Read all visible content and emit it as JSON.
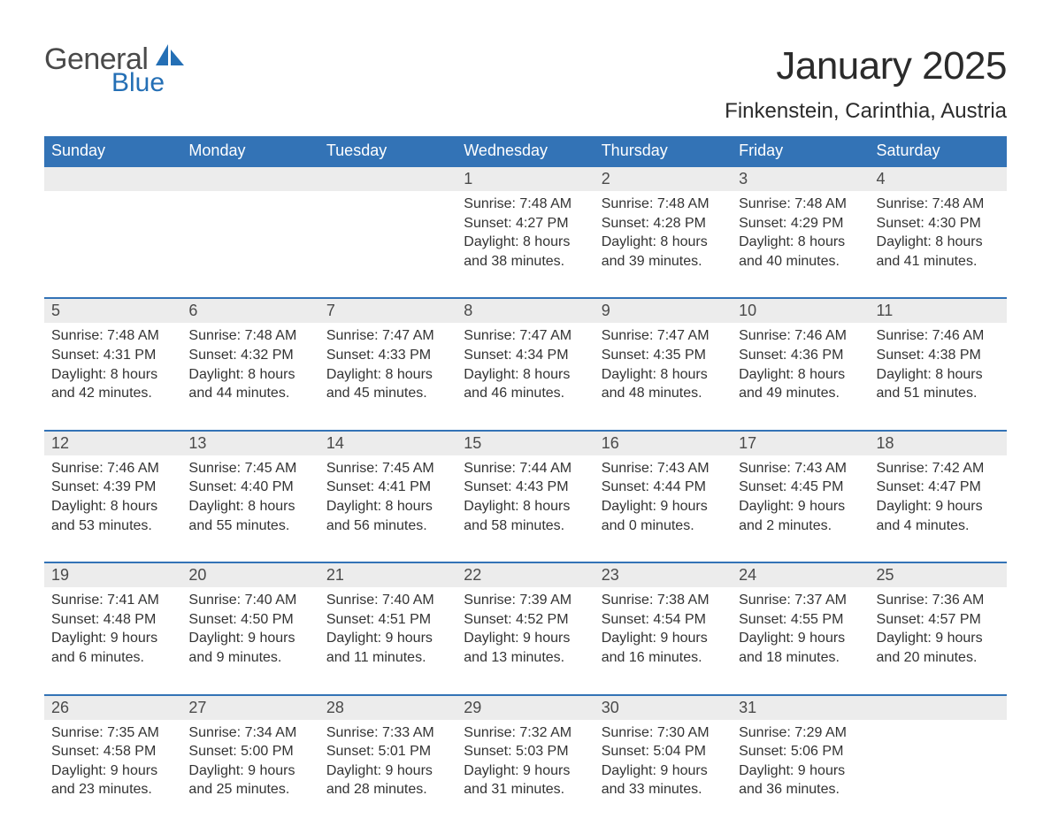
{
  "brand": {
    "general": "General",
    "blue": "Blue"
  },
  "title": "January 2025",
  "location": "Finkenstein, Carinthia, Austria",
  "colors": {
    "header_bg": "#3373b6",
    "header_text": "#ffffff",
    "daynum_bg": "#ececec",
    "rule": "#3373b6",
    "logo_blue": "#246fb5",
    "body_text": "#333333",
    "page_bg": "#ffffff"
  },
  "weekdays": [
    "Sunday",
    "Monday",
    "Tuesday",
    "Wednesday",
    "Thursday",
    "Friday",
    "Saturday"
  ],
  "weeks": [
    [
      {
        "n": "",
        "sr": "",
        "ss": "",
        "dl1": "",
        "dl2": ""
      },
      {
        "n": "",
        "sr": "",
        "ss": "",
        "dl1": "",
        "dl2": ""
      },
      {
        "n": "",
        "sr": "",
        "ss": "",
        "dl1": "",
        "dl2": ""
      },
      {
        "n": "1",
        "sr": "Sunrise: 7:48 AM",
        "ss": "Sunset: 4:27 PM",
        "dl1": "Daylight: 8 hours",
        "dl2": "and 38 minutes."
      },
      {
        "n": "2",
        "sr": "Sunrise: 7:48 AM",
        "ss": "Sunset: 4:28 PM",
        "dl1": "Daylight: 8 hours",
        "dl2": "and 39 minutes."
      },
      {
        "n": "3",
        "sr": "Sunrise: 7:48 AM",
        "ss": "Sunset: 4:29 PM",
        "dl1": "Daylight: 8 hours",
        "dl2": "and 40 minutes."
      },
      {
        "n": "4",
        "sr": "Sunrise: 7:48 AM",
        "ss": "Sunset: 4:30 PM",
        "dl1": "Daylight: 8 hours",
        "dl2": "and 41 minutes."
      }
    ],
    [
      {
        "n": "5",
        "sr": "Sunrise: 7:48 AM",
        "ss": "Sunset: 4:31 PM",
        "dl1": "Daylight: 8 hours",
        "dl2": "and 42 minutes."
      },
      {
        "n": "6",
        "sr": "Sunrise: 7:48 AM",
        "ss": "Sunset: 4:32 PM",
        "dl1": "Daylight: 8 hours",
        "dl2": "and 44 minutes."
      },
      {
        "n": "7",
        "sr": "Sunrise: 7:47 AM",
        "ss": "Sunset: 4:33 PM",
        "dl1": "Daylight: 8 hours",
        "dl2": "and 45 minutes."
      },
      {
        "n": "8",
        "sr": "Sunrise: 7:47 AM",
        "ss": "Sunset: 4:34 PM",
        "dl1": "Daylight: 8 hours",
        "dl2": "and 46 minutes."
      },
      {
        "n": "9",
        "sr": "Sunrise: 7:47 AM",
        "ss": "Sunset: 4:35 PM",
        "dl1": "Daylight: 8 hours",
        "dl2": "and 48 minutes."
      },
      {
        "n": "10",
        "sr": "Sunrise: 7:46 AM",
        "ss": "Sunset: 4:36 PM",
        "dl1": "Daylight: 8 hours",
        "dl2": "and 49 minutes."
      },
      {
        "n": "11",
        "sr": "Sunrise: 7:46 AM",
        "ss": "Sunset: 4:38 PM",
        "dl1": "Daylight: 8 hours",
        "dl2": "and 51 minutes."
      }
    ],
    [
      {
        "n": "12",
        "sr": "Sunrise: 7:46 AM",
        "ss": "Sunset: 4:39 PM",
        "dl1": "Daylight: 8 hours",
        "dl2": "and 53 minutes."
      },
      {
        "n": "13",
        "sr": "Sunrise: 7:45 AM",
        "ss": "Sunset: 4:40 PM",
        "dl1": "Daylight: 8 hours",
        "dl2": "and 55 minutes."
      },
      {
        "n": "14",
        "sr": "Sunrise: 7:45 AM",
        "ss": "Sunset: 4:41 PM",
        "dl1": "Daylight: 8 hours",
        "dl2": "and 56 minutes."
      },
      {
        "n": "15",
        "sr": "Sunrise: 7:44 AM",
        "ss": "Sunset: 4:43 PM",
        "dl1": "Daylight: 8 hours",
        "dl2": "and 58 minutes."
      },
      {
        "n": "16",
        "sr": "Sunrise: 7:43 AM",
        "ss": "Sunset: 4:44 PM",
        "dl1": "Daylight: 9 hours",
        "dl2": "and 0 minutes."
      },
      {
        "n": "17",
        "sr": "Sunrise: 7:43 AM",
        "ss": "Sunset: 4:45 PM",
        "dl1": "Daylight: 9 hours",
        "dl2": "and 2 minutes."
      },
      {
        "n": "18",
        "sr": "Sunrise: 7:42 AM",
        "ss": "Sunset: 4:47 PM",
        "dl1": "Daylight: 9 hours",
        "dl2": "and 4 minutes."
      }
    ],
    [
      {
        "n": "19",
        "sr": "Sunrise: 7:41 AM",
        "ss": "Sunset: 4:48 PM",
        "dl1": "Daylight: 9 hours",
        "dl2": "and 6 minutes."
      },
      {
        "n": "20",
        "sr": "Sunrise: 7:40 AM",
        "ss": "Sunset: 4:50 PM",
        "dl1": "Daylight: 9 hours",
        "dl2": "and 9 minutes."
      },
      {
        "n": "21",
        "sr": "Sunrise: 7:40 AM",
        "ss": "Sunset: 4:51 PM",
        "dl1": "Daylight: 9 hours",
        "dl2": "and 11 minutes."
      },
      {
        "n": "22",
        "sr": "Sunrise: 7:39 AM",
        "ss": "Sunset: 4:52 PM",
        "dl1": "Daylight: 9 hours",
        "dl2": "and 13 minutes."
      },
      {
        "n": "23",
        "sr": "Sunrise: 7:38 AM",
        "ss": "Sunset: 4:54 PM",
        "dl1": "Daylight: 9 hours",
        "dl2": "and 16 minutes."
      },
      {
        "n": "24",
        "sr": "Sunrise: 7:37 AM",
        "ss": "Sunset: 4:55 PM",
        "dl1": "Daylight: 9 hours",
        "dl2": "and 18 minutes."
      },
      {
        "n": "25",
        "sr": "Sunrise: 7:36 AM",
        "ss": "Sunset: 4:57 PM",
        "dl1": "Daylight: 9 hours",
        "dl2": "and 20 minutes."
      }
    ],
    [
      {
        "n": "26",
        "sr": "Sunrise: 7:35 AM",
        "ss": "Sunset: 4:58 PM",
        "dl1": "Daylight: 9 hours",
        "dl2": "and 23 minutes."
      },
      {
        "n": "27",
        "sr": "Sunrise: 7:34 AM",
        "ss": "Sunset: 5:00 PM",
        "dl1": "Daylight: 9 hours",
        "dl2": "and 25 minutes."
      },
      {
        "n": "28",
        "sr": "Sunrise: 7:33 AM",
        "ss": "Sunset: 5:01 PM",
        "dl1": "Daylight: 9 hours",
        "dl2": "and 28 minutes."
      },
      {
        "n": "29",
        "sr": "Sunrise: 7:32 AM",
        "ss": "Sunset: 5:03 PM",
        "dl1": "Daylight: 9 hours",
        "dl2": "and 31 minutes."
      },
      {
        "n": "30",
        "sr": "Sunrise: 7:30 AM",
        "ss": "Sunset: 5:04 PM",
        "dl1": "Daylight: 9 hours",
        "dl2": "and 33 minutes."
      },
      {
        "n": "31",
        "sr": "Sunrise: 7:29 AM",
        "ss": "Sunset: 5:06 PM",
        "dl1": "Daylight: 9 hours",
        "dl2": "and 36 minutes."
      },
      {
        "n": "",
        "sr": "",
        "ss": "",
        "dl1": "",
        "dl2": ""
      }
    ]
  ]
}
